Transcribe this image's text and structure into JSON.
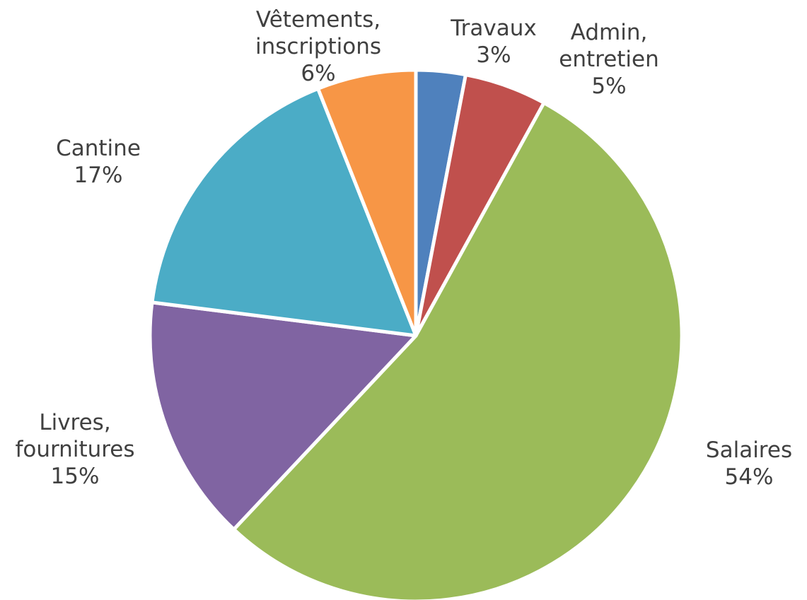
{
  "chart_data": {
    "type": "pie",
    "start_angle_deg": 0,
    "direction": "clockwise",
    "slices": [
      {
        "label_lines": [
          "Travaux"
        ],
        "percent_label": "3%",
        "value": 3,
        "color": "#4f81bd"
      },
      {
        "label_lines": [
          "Admin,",
          "entretien"
        ],
        "percent_label": "5%",
        "value": 5,
        "color": "#c0504d"
      },
      {
        "label_lines": [
          "Salaires"
        ],
        "percent_label": "54%",
        "value": 54,
        "color": "#9bbb59"
      },
      {
        "label_lines": [
          "Livres,",
          "fournitures"
        ],
        "percent_label": "15%",
        "value": 15,
        "color": "#8064a2"
      },
      {
        "label_lines": [
          "Cantine"
        ],
        "percent_label": "17%",
        "value": 17,
        "color": "#4bacc6"
      },
      {
        "label_lines": [
          "Vêtements,",
          "inscriptions"
        ],
        "percent_label": "6%",
        "value": 6,
        "color": "#f79646"
      }
    ]
  }
}
